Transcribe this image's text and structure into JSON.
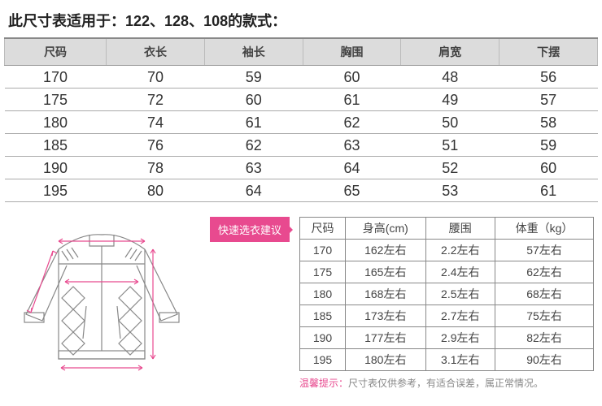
{
  "title": "此尺寸表适用于：122、128、108的款式：",
  "main": {
    "columns": [
      "尺码",
      "衣长",
      "袖长",
      "胸围",
      "肩宽",
      "下摆"
    ],
    "rows": [
      [
        "170",
        "70",
        "59",
        "60",
        "48",
        "56"
      ],
      [
        "175",
        "72",
        "60",
        "61",
        "49",
        "57"
      ],
      [
        "180",
        "74",
        "61",
        "62",
        "50",
        "58"
      ],
      [
        "185",
        "76",
        "62",
        "63",
        "51",
        "59"
      ],
      [
        "190",
        "78",
        "63",
        "64",
        "52",
        "60"
      ],
      [
        "195",
        "80",
        "64",
        "65",
        "53",
        "61"
      ]
    ],
    "header_bg": "#dcdcdc",
    "border_color": "#aaaaaa"
  },
  "tag": "快速选衣建议",
  "small": {
    "columns": [
      "尺码",
      "身高(cm)",
      "腰围",
      "体重（kg）"
    ],
    "rows": [
      [
        "170",
        "162左右",
        "2.2左右",
        "57左右"
      ],
      [
        "175",
        "165左右",
        "2.4左右",
        "62左右"
      ],
      [
        "180",
        "168左右",
        "2.5左右",
        "68左右"
      ],
      [
        "185",
        "173左右",
        "2.7左右",
        "75左右"
      ],
      [
        "190",
        "177左右",
        "2.9左右",
        "82左右"
      ],
      [
        "195",
        "180左右",
        "3.1左右",
        "90左右"
      ]
    ]
  },
  "footnote_label": "温馨提示：",
  "footnote_text": "尺寸表仅供参考，有适合误差，属正常情况。",
  "colors": {
    "accent": "#e84a8f",
    "stroke": "#888888"
  }
}
